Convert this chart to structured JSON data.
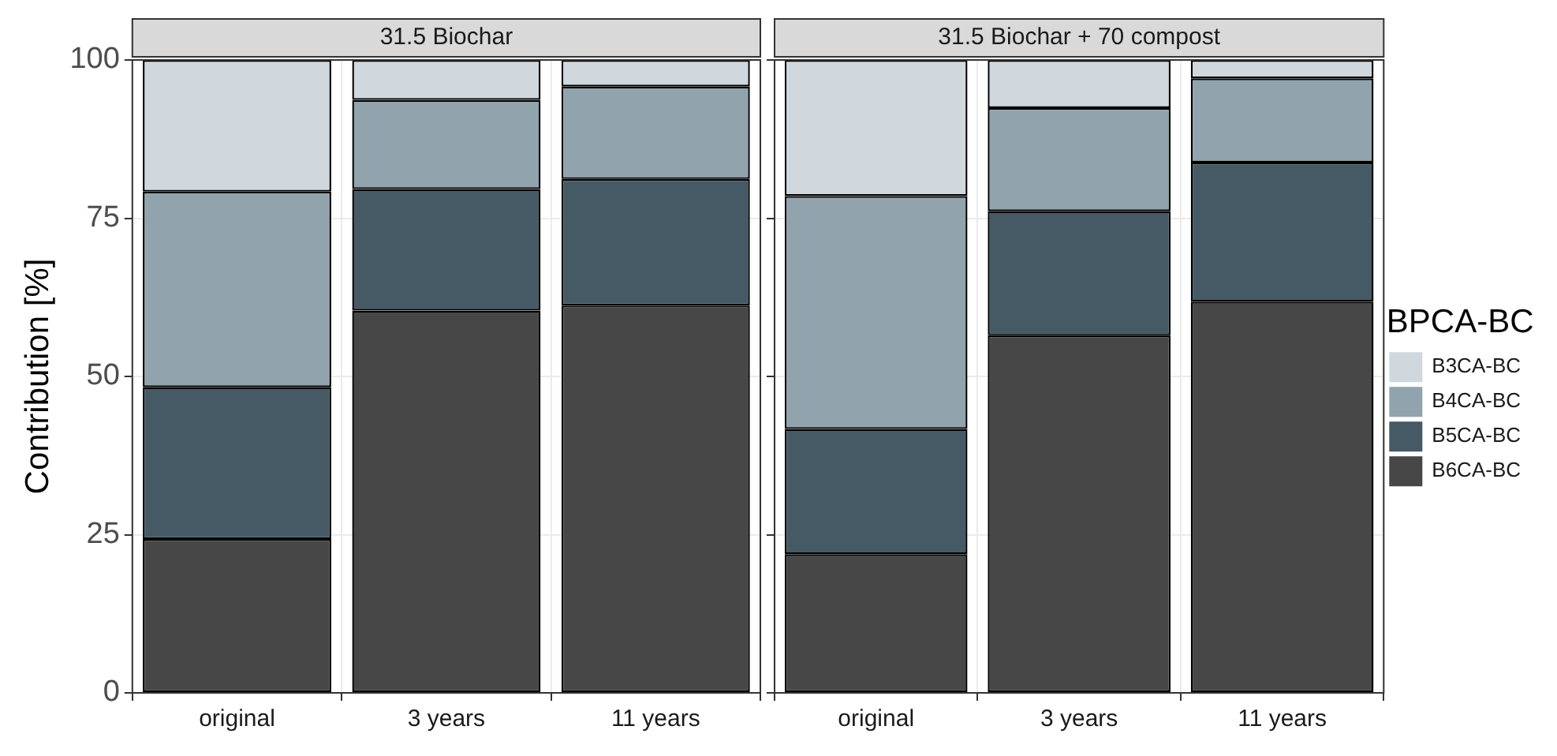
{
  "chart_data": [
    {
      "type": "bar",
      "title": "31.5 Biochar",
      "ylabel": "Contribution [%]",
      "categories": [
        "original",
        "3 years",
        "11 years"
      ],
      "stacked": true,
      "ylim": [
        0,
        100
      ],
      "yticks": [
        0,
        25,
        50,
        75,
        100
      ],
      "grid": true,
      "legend": false,
      "series": [
        {
          "color": "#474747",
          "values": [
            24.3,
            60.4,
            61.2
          ]
        },
        {
          "color": "#465a66",
          "values": [
            24.0,
            19.2,
            20.0
          ]
        },
        {
          "color": "#91a4ad",
          "values": [
            30.9,
            14.1,
            14.6
          ]
        },
        {
          "color": "#d0d8de",
          "values": [
            20.8,
            6.3,
            4.2
          ]
        }
      ]
    },
    {
      "type": "bar",
      "title": "31.5 Biochar + 70 compost",
      "legend_title": "BPCA-BC",
      "categories": [
        "original",
        "3 years",
        "11 years"
      ],
      "stacked": true,
      "ylim": [
        0,
        100
      ],
      "yticks": [
        0,
        25,
        50,
        75,
        100
      ],
      "grid": true,
      "legend": "right",
      "tick_labels": "x",
      "series": [
        {
          "name": "B6CA-BC",
          "color": "#474747",
          "values": [
            21.9,
            56.5,
            61.8
          ]
        },
        {
          "name": "B5CA-BC",
          "color": "#465a66",
          "values": [
            19.8,
            19.6,
            22.0
          ]
        },
        {
          "name": "B4CA-BC",
          "color": "#91a4ad",
          "values": [
            36.8,
            16.3,
            13.3
          ]
        },
        {
          "name": "B3CA-BC",
          "color": "#d0d8de",
          "values": [
            21.5,
            7.6,
            2.9
          ]
        }
      ]
    }
  ]
}
